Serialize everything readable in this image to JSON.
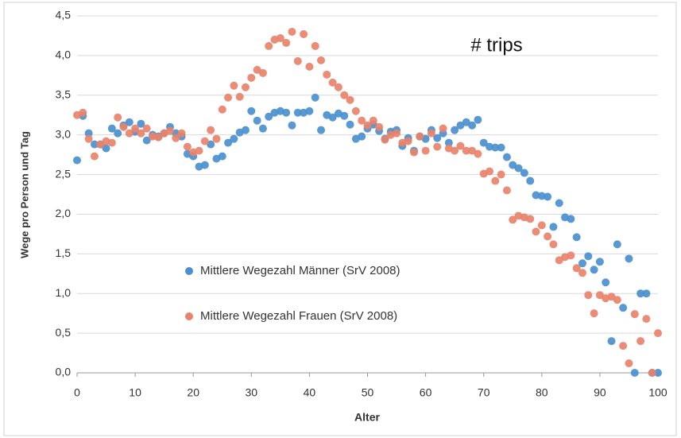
{
  "chart_data": {
    "type": "scatter",
    "annotation": "# trips",
    "xlabel": "Alter",
    "ylabel": "Wege pro Person und Tag",
    "xlim": [
      0,
      100
    ],
    "xticks": [
      0,
      10,
      20,
      30,
      40,
      50,
      60,
      70,
      80,
      90,
      100
    ],
    "ylim": [
      0,
      4.5
    ],
    "yticks": [
      {
        "value": 0,
        "label": "0,0"
      },
      {
        "value": 0.5,
        "label": "0,5"
      },
      {
        "value": 1,
        "label": "1,0"
      },
      {
        "value": 1.5,
        "label": "1,5"
      },
      {
        "value": 2,
        "label": "2,0"
      },
      {
        "value": 2.5,
        "label": "2,5"
      },
      {
        "value": 3,
        "label": "3,0"
      },
      {
        "value": 3.5,
        "label": "3,5"
      },
      {
        "value": 4,
        "label": "4,0"
      },
      {
        "value": 4.5,
        "label": "4,5"
      }
    ],
    "grid": true,
    "legend_position": "center-left",
    "x": [
      0,
      1,
      2,
      3,
      4,
      5,
      6,
      7,
      8,
      9,
      10,
      11,
      12,
      13,
      14,
      15,
      16,
      17,
      18,
      19,
      20,
      21,
      22,
      23,
      24,
      25,
      26,
      27,
      28,
      29,
      30,
      31,
      32,
      33,
      34,
      35,
      36,
      37,
      38,
      39,
      40,
      41,
      42,
      43,
      44,
      45,
      46,
      47,
      48,
      49,
      50,
      51,
      52,
      53,
      54,
      55,
      56,
      57,
      58,
      59,
      60,
      61,
      62,
      63,
      64,
      65,
      66,
      67,
      68,
      69,
      70,
      71,
      72,
      73,
      74,
      75,
      76,
      77,
      78,
      79,
      80,
      81,
      82,
      83,
      84,
      85,
      86,
      87,
      88,
      89,
      90,
      91,
      92,
      93,
      94,
      95,
      96,
      97,
      98,
      99,
      100
    ],
    "series": [
      {
        "name": "Mittlere Wegezahl Männer (SrV 2008)",
        "color": "#4a8fcf",
        "values": [
          2.68,
          3.24,
          3.02,
          2.88,
          2.88,
          2.83,
          3.08,
          3.02,
          3.12,
          3.16,
          3.04,
          3.14,
          2.93,
          3.0,
          2.98,
          3.02,
          3.1,
          3.02,
          2.98,
          2.76,
          2.73,
          2.6,
          2.62,
          2.88,
          2.7,
          2.73,
          2.9,
          2.95,
          3.03,
          3.06,
          3.3,
          3.18,
          3.08,
          3.23,
          3.28,
          3.3,
          3.28,
          3.12,
          3.28,
          3.28,
          3.3,
          3.47,
          3.06,
          3.25,
          3.22,
          3.27,
          3.24,
          3.13,
          2.95,
          2.98,
          3.08,
          3.13,
          3.05,
          2.95,
          3.04,
          3.06,
          2.86,
          2.96,
          2.8,
          2.98,
          2.95,
          3.06,
          2.96,
          3.02,
          2.9,
          3.06,
          3.12,
          3.16,
          3.12,
          3.19,
          2.9,
          2.85,
          2.84,
          2.84,
          2.72,
          2.62,
          2.58,
          2.52,
          2.42,
          2.24,
          2.23,
          2.22,
          1.84,
          2.14,
          1.96,
          1.94,
          1.71,
          1.38,
          1.47,
          1.3,
          1.4,
          1.14,
          0.4,
          1.62,
          0.82,
          1.44,
          0.0,
          1.0,
          1.0,
          0.0,
          0.0
        ]
      },
      {
        "name": "Mittlere Wegezahl Frauen (SrV 2008)",
        "color": "#e8826a",
        "values": [
          3.25,
          3.28,
          2.95,
          2.73,
          2.88,
          2.92,
          2.9,
          3.22,
          3.1,
          3.02,
          3.08,
          3.02,
          3.08,
          2.98,
          2.97,
          3.02,
          3.05,
          2.96,
          3.02,
          2.85,
          2.78,
          2.8,
          2.92,
          3.06,
          2.95,
          3.32,
          3.47,
          3.62,
          3.48,
          3.6,
          3.72,
          3.82,
          3.78,
          4.12,
          4.2,
          4.22,
          4.16,
          4.3,
          3.93,
          4.27,
          3.86,
          4.12,
          3.94,
          3.76,
          3.66,
          3.6,
          3.5,
          3.44,
          3.3,
          3.18,
          3.12,
          3.18,
          3.1,
          2.94,
          3.0,
          3.02,
          2.9,
          2.92,
          2.78,
          2.98,
          2.8,
          3.02,
          2.85,
          3.08,
          2.83,
          2.8,
          2.86,
          2.8,
          2.8,
          2.76,
          2.51,
          2.54,
          2.42,
          2.5,
          2.3,
          1.93,
          1.98,
          1.96,
          1.94,
          1.78,
          1.86,
          1.72,
          1.62,
          1.42,
          1.46,
          1.48,
          1.32,
          1.26,
          0.98,
          0.75,
          0.98,
          0.94,
          0.96,
          0.92,
          0.34,
          0.12,
          0.74,
          0.4,
          0.68,
          0.0,
          0.5
        ]
      }
    ]
  }
}
